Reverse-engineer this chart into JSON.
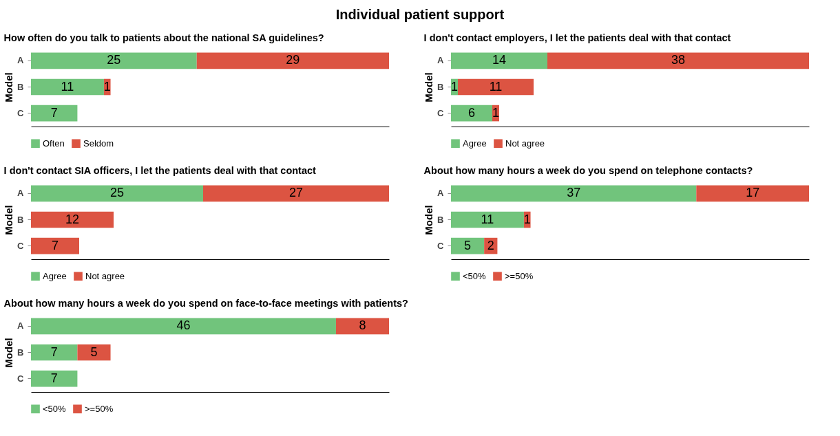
{
  "chart_data": [
    {
      "type": "bar",
      "orientation": "horizontal",
      "stacked": true,
      "tick_labels": "y",
      "data_labels": true,
      "legend": "bottom",
      "annotations": [
        "Individual patient support"
      ],
      "title": "How often do you talk to patients about the national SA guidelines?",
      "ylabel": "Model",
      "categories": [
        "A",
        "B",
        "C"
      ],
      "series": [
        {
          "name": "Often",
          "color": "#71c47c",
          "values": [
            25,
            11,
            7
          ]
        },
        {
          "name": "Seldom",
          "color": "#dc5442",
          "values": [
            29,
            1,
            null
          ]
        }
      ]
    },
    {
      "type": "bar",
      "orientation": "horizontal",
      "stacked": true,
      "tick_labels": "y",
      "data_labels": true,
      "legend": "bottom",
      "title": "I don't contact employers, I let the patients deal with that contact",
      "ylabel": "Model",
      "categories": [
        "A",
        "B",
        "C"
      ],
      "series": [
        {
          "name": "Agree",
          "color": "#71c47c",
          "values": [
            14,
            1,
            6
          ]
        },
        {
          "name": "Not agree",
          "color": "#dc5442",
          "values": [
            38,
            11,
            1
          ]
        }
      ]
    },
    {
      "type": "bar",
      "orientation": "horizontal",
      "stacked": true,
      "tick_labels": "y",
      "data_labels": true,
      "legend": "bottom",
      "title": "I don't contact SIA officers, I let the patients deal with that contact",
      "ylabel": "Model",
      "categories": [
        "A",
        "B",
        "C"
      ],
      "series": [
        {
          "name": "Agree",
          "color": "#71c47c",
          "values": [
            25,
            null,
            null
          ]
        },
        {
          "name": "Not agree",
          "color": "#dc5442",
          "values": [
            27,
            12,
            7
          ]
        }
      ]
    },
    {
      "type": "bar",
      "orientation": "horizontal",
      "stacked": true,
      "tick_labels": "y",
      "data_labels": true,
      "legend": "bottom",
      "title": "About how many hours a week do you spend on telephone contacts?",
      "ylabel": "Model",
      "categories": [
        "A",
        "B",
        "C"
      ],
      "series": [
        {
          "name": "<50%",
          "color": "#71c47c",
          "values": [
            37,
            11,
            5
          ]
        },
        {
          "name": ">=50%",
          "color": "#dc5442",
          "values": [
            17,
            1,
            2
          ]
        }
      ]
    },
    {
      "type": "bar",
      "orientation": "horizontal",
      "stacked": true,
      "tick_labels": "y",
      "data_labels": true,
      "legend": "bottom",
      "title": "About how many hours a week do you spend on face-to-face meetings with patients?",
      "ylabel": "Model",
      "categories": [
        "A",
        "B",
        "C"
      ],
      "series": [
        {
          "name": "<50%",
          "color": "#71c47c",
          "values": [
            46,
            7,
            7
          ]
        },
        {
          "name": ">=50%",
          "color": "#dc5442",
          "values": [
            8,
            5,
            null
          ]
        }
      ]
    }
  ]
}
